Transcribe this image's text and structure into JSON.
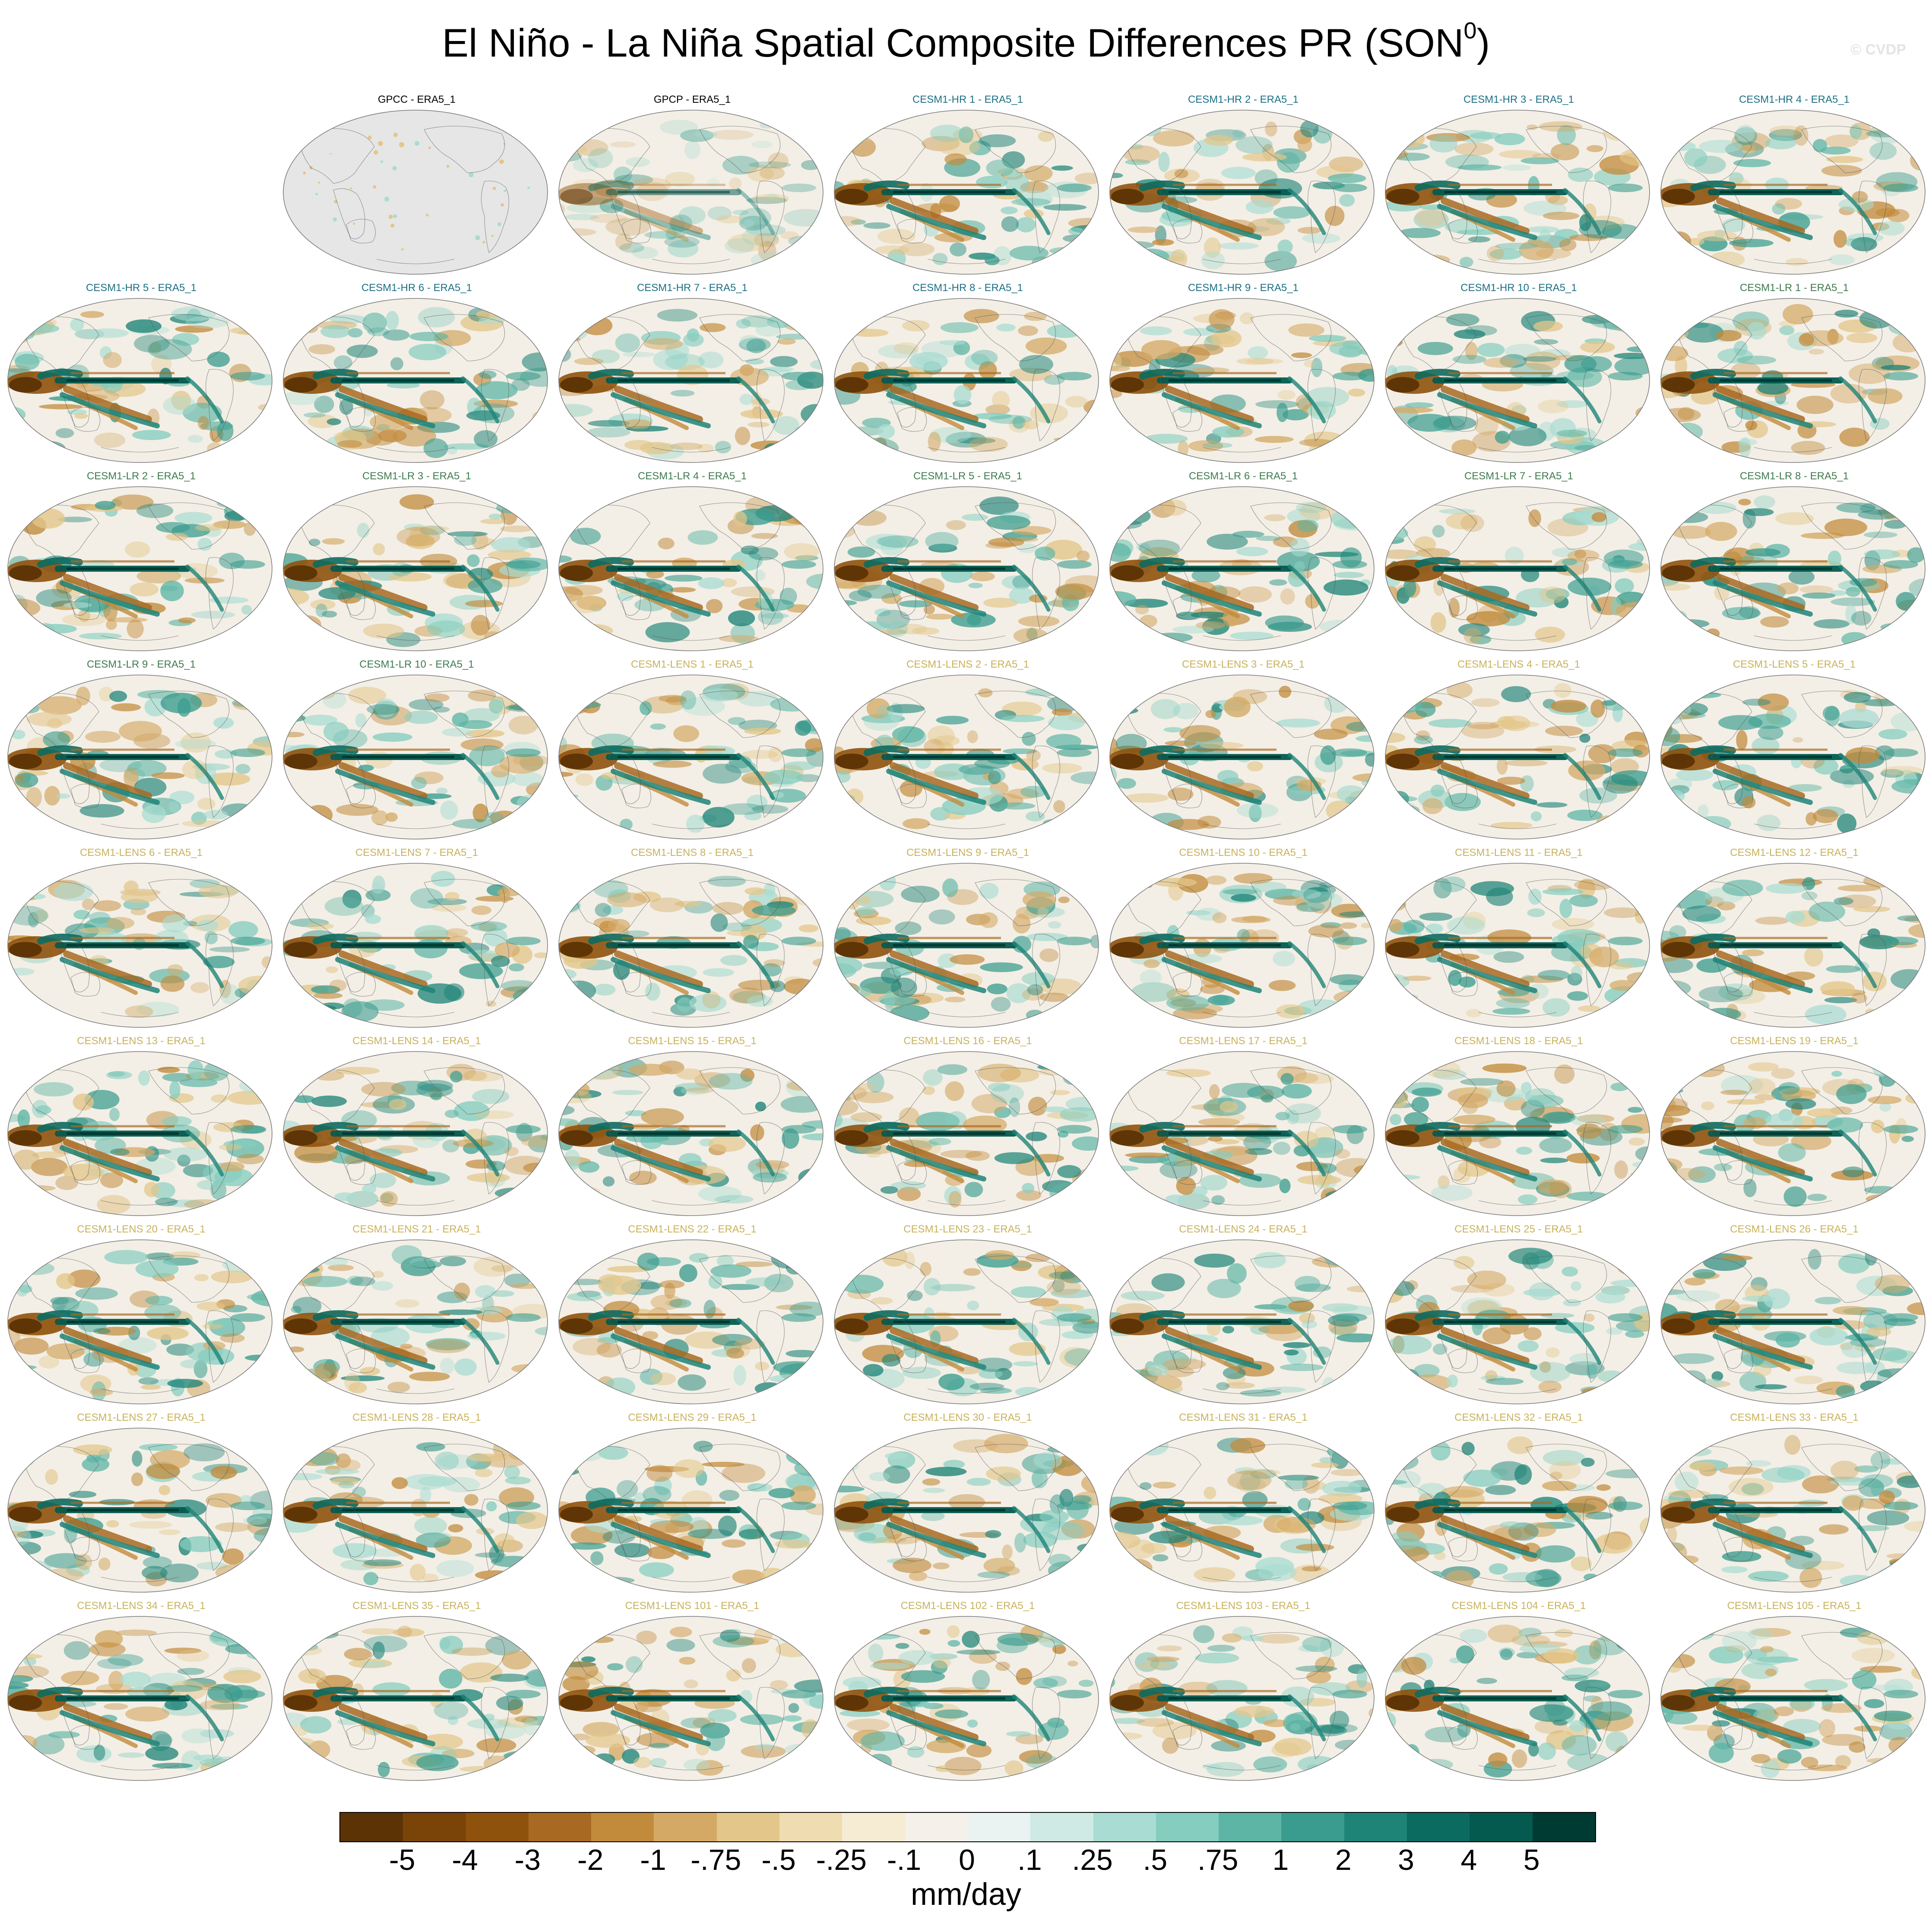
{
  "figure": {
    "title": "El Niño - La Niña Spatial Composite Differences PR (SON",
    "title_superscript": "0",
    "title_suffix": ")",
    "credit": "© CVDP",
    "units": "mm/day"
  },
  "colorbar": {
    "colors": [
      "#5c3305",
      "#7a4408",
      "#8f520d",
      "#a86a22",
      "#c28b3c",
      "#d4a966",
      "#e3c689",
      "#efdcb0",
      "#f6ecd3",
      "#f5f1ea",
      "#eaf3f1",
      "#cfeae5",
      "#a9dcd2",
      "#85cdbf",
      "#5db5a6",
      "#3a9c8e",
      "#1f8478",
      "#0c6b61",
      "#045a4f",
      "#003b33"
    ],
    "labels": [
      "-5",
      "-4",
      "-3",
      "-2",
      "-1",
      "-.75",
      "-.5",
      "-.25",
      "-.1",
      "0",
      ".1",
      ".25",
      ".5",
      ".75",
      "1",
      "2",
      "3",
      "4",
      "5"
    ]
  },
  "title_colors": {
    "obs": "#000000",
    "cesm1_hr": "#1d6f84",
    "cesm1_lr": "#3f7a4f",
    "cesm1_lens": "#c8b25c"
  },
  "panels": [
    {
      "title": "GPCC - ERA5_1",
      "group": "obs",
      "fill": "nodata"
    },
    {
      "title": "GPCP - ERA5_1",
      "group": "obs",
      "fill": "weak"
    },
    {
      "title": "CESM1-HR 1 - ERA5_1",
      "group": "cesm1_hr",
      "fill": "full"
    },
    {
      "title": "CESM1-HR 2 - ERA5_1",
      "group": "cesm1_hr",
      "fill": "full"
    },
    {
      "title": "CESM1-HR 3 - ERA5_1",
      "group": "cesm1_hr",
      "fill": "full"
    },
    {
      "title": "CESM1-HR 4 - ERA5_1",
      "group": "cesm1_hr",
      "fill": "full"
    },
    {
      "title": "CESM1-HR 5 - ERA5_1",
      "group": "cesm1_hr",
      "fill": "full"
    },
    {
      "title": "CESM1-HR 6 - ERA5_1",
      "group": "cesm1_hr",
      "fill": "full"
    },
    {
      "title": "CESM1-HR 7 - ERA5_1",
      "group": "cesm1_hr",
      "fill": "full"
    },
    {
      "title": "CESM1-HR 8 - ERA5_1",
      "group": "cesm1_hr",
      "fill": "full"
    },
    {
      "title": "CESM1-HR 9 - ERA5_1",
      "group": "cesm1_hr",
      "fill": "full"
    },
    {
      "title": "CESM1-HR 10 - ERA5_1",
      "group": "cesm1_hr",
      "fill": "full"
    },
    {
      "title": "CESM1-LR 1 - ERA5_1",
      "group": "cesm1_lr",
      "fill": "full"
    },
    {
      "title": "CESM1-LR 2 - ERA5_1",
      "group": "cesm1_lr",
      "fill": "full"
    },
    {
      "title": "CESM1-LR 3 - ERA5_1",
      "group": "cesm1_lr",
      "fill": "full"
    },
    {
      "title": "CESM1-LR 4 - ERA5_1",
      "group": "cesm1_lr",
      "fill": "full"
    },
    {
      "title": "CESM1-LR 5 - ERA5_1",
      "group": "cesm1_lr",
      "fill": "full"
    },
    {
      "title": "CESM1-LR 6 - ERA5_1",
      "group": "cesm1_lr",
      "fill": "full"
    },
    {
      "title": "CESM1-LR 7 - ERA5_1",
      "group": "cesm1_lr",
      "fill": "full"
    },
    {
      "title": "CESM1-LR 8 - ERA5_1",
      "group": "cesm1_lr",
      "fill": "full"
    },
    {
      "title": "CESM1-LR 9 - ERA5_1",
      "group": "cesm1_lr",
      "fill": "full"
    },
    {
      "title": "CESM1-LR 10 - ERA5_1",
      "group": "cesm1_lr",
      "fill": "full"
    },
    {
      "title": "CESM1-LENS 1 - ERA5_1",
      "group": "cesm1_lens",
      "fill": "full"
    },
    {
      "title": "CESM1-LENS 2 - ERA5_1",
      "group": "cesm1_lens",
      "fill": "full"
    },
    {
      "title": "CESM1-LENS 3 - ERA5_1",
      "group": "cesm1_lens",
      "fill": "full"
    },
    {
      "title": "CESM1-LENS 4 - ERA5_1",
      "group": "cesm1_lens",
      "fill": "full"
    },
    {
      "title": "CESM1-LENS 5 - ERA5_1",
      "group": "cesm1_lens",
      "fill": "full"
    },
    {
      "title": "CESM1-LENS 6 - ERA5_1",
      "group": "cesm1_lens",
      "fill": "full"
    },
    {
      "title": "CESM1-LENS 7 - ERA5_1",
      "group": "cesm1_lens",
      "fill": "full"
    },
    {
      "title": "CESM1-LENS 8 - ERA5_1",
      "group": "cesm1_lens",
      "fill": "full"
    },
    {
      "title": "CESM1-LENS 9 - ERA5_1",
      "group": "cesm1_lens",
      "fill": "full"
    },
    {
      "title": "CESM1-LENS 10 - ERA5_1",
      "group": "cesm1_lens",
      "fill": "full"
    },
    {
      "title": "CESM1-LENS 11 - ERA5_1",
      "group": "cesm1_lens",
      "fill": "full"
    },
    {
      "title": "CESM1-LENS 12 - ERA5_1",
      "group": "cesm1_lens",
      "fill": "full"
    },
    {
      "title": "CESM1-LENS 13 - ERA5_1",
      "group": "cesm1_lens",
      "fill": "full"
    },
    {
      "title": "CESM1-LENS 14 - ERA5_1",
      "group": "cesm1_lens",
      "fill": "full"
    },
    {
      "title": "CESM1-LENS 15 - ERA5_1",
      "group": "cesm1_lens",
      "fill": "full"
    },
    {
      "title": "CESM1-LENS 16 - ERA5_1",
      "group": "cesm1_lens",
      "fill": "full"
    },
    {
      "title": "CESM1-LENS 17 - ERA5_1",
      "group": "cesm1_lens",
      "fill": "full"
    },
    {
      "title": "CESM1-LENS 18 - ERA5_1",
      "group": "cesm1_lens",
      "fill": "full"
    },
    {
      "title": "CESM1-LENS 19 - ERA5_1",
      "group": "cesm1_lens",
      "fill": "full"
    },
    {
      "title": "CESM1-LENS 20 - ERA5_1",
      "group": "cesm1_lens",
      "fill": "full"
    },
    {
      "title": "CESM1-LENS 21 - ERA5_1",
      "group": "cesm1_lens",
      "fill": "full"
    },
    {
      "title": "CESM1-LENS 22 - ERA5_1",
      "group": "cesm1_lens",
      "fill": "full"
    },
    {
      "title": "CESM1-LENS 23 - ERA5_1",
      "group": "cesm1_lens",
      "fill": "full"
    },
    {
      "title": "CESM1-LENS 24 - ERA5_1",
      "group": "cesm1_lens",
      "fill": "full"
    },
    {
      "title": "CESM1-LENS 25 - ERA5_1",
      "group": "cesm1_lens",
      "fill": "full"
    },
    {
      "title": "CESM1-LENS 26 - ERA5_1",
      "group": "cesm1_lens",
      "fill": "full"
    },
    {
      "title": "CESM1-LENS 27 - ERA5_1",
      "group": "cesm1_lens",
      "fill": "full"
    },
    {
      "title": "CESM1-LENS 28 - ERA5_1",
      "group": "cesm1_lens",
      "fill": "full"
    },
    {
      "title": "CESM1-LENS 29 - ERA5_1",
      "group": "cesm1_lens",
      "fill": "full"
    },
    {
      "title": "CESM1-LENS 30 - ERA5_1",
      "group": "cesm1_lens",
      "fill": "full"
    },
    {
      "title": "CESM1-LENS 31 - ERA5_1",
      "group": "cesm1_lens",
      "fill": "full"
    },
    {
      "title": "CESM1-LENS 32 - ERA5_1",
      "group": "cesm1_lens",
      "fill": "full"
    },
    {
      "title": "CESM1-LENS 33 - ERA5_1",
      "group": "cesm1_lens",
      "fill": "full"
    },
    {
      "title": "CESM1-LENS 34 - ERA5_1",
      "group": "cesm1_lens",
      "fill": "full"
    },
    {
      "title": "CESM1-LENS 35 - ERA5_1",
      "group": "cesm1_lens",
      "fill": "full"
    },
    {
      "title": "CESM1-LENS 101 - ERA5_1",
      "group": "cesm1_lens",
      "fill": "full"
    },
    {
      "title": "CESM1-LENS 102 - ERA5_1",
      "group": "cesm1_lens",
      "fill": "full"
    },
    {
      "title": "CESM1-LENS 103 - ERA5_1",
      "group": "cesm1_lens",
      "fill": "full"
    },
    {
      "title": "CESM1-LENS 104 - ERA5_1",
      "group": "cesm1_lens",
      "fill": "full"
    },
    {
      "title": "CESM1-LENS 105 - ERA5_1",
      "group": "cesm1_lens",
      "fill": "full"
    }
  ]
}
